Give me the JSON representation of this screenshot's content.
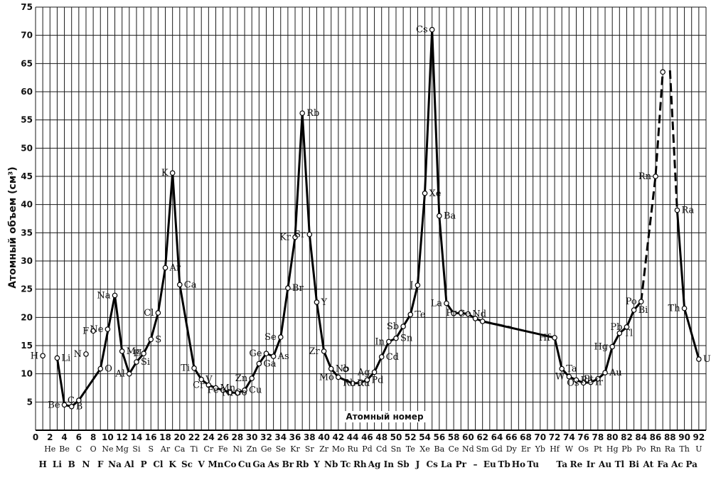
{
  "chart_data": {
    "type": "line",
    "ylabel": "Атомный объем (см³)",
    "xlabel": "Атомный номер",
    "ylim": [
      0,
      75
    ],
    "xlim": [
      0,
      93
    ],
    "y_ticks": [
      5,
      10,
      15,
      20,
      25,
      30,
      35,
      40,
      45,
      50,
      55,
      60,
      65,
      70,
      75
    ],
    "x_ticks": [
      0,
      2,
      4,
      6,
      8,
      10,
      12,
      14,
      16,
      18,
      20,
      22,
      24,
      26,
      28,
      30,
      32,
      34,
      36,
      38,
      40,
      42,
      44,
      46,
      48,
      50,
      52,
      54,
      56,
      58,
      60,
      62,
      64,
      66,
      68,
      70,
      72,
      74,
      76,
      78,
      80,
      82,
      84,
      86,
      88,
      90,
      92
    ],
    "even_symbols": [
      "He",
      "Be",
      "C",
      "O",
      "Ne",
      "Mg",
      "Si",
      "S",
      "Ar",
      "Ca",
      "Ti",
      "Cr",
      "Fe",
      "Ni",
      "Zn",
      "Ge",
      "Se",
      "Kr",
      "Sr",
      "Zr",
      "Mo",
      "Ru",
      "Pd",
      "Cd",
      "Sn",
      "Te",
      "Xe",
      "Ba",
      "Ce",
      "Nd",
      "Sm",
      "Gd",
      "Dy",
      "Er",
      "Yb",
      "Hf",
      "W",
      "Os",
      "Pt",
      "Hg",
      "Pb",
      "Po",
      "Rn",
      "Ra",
      "Th",
      "U"
    ],
    "bottom_symbols": [
      "H",
      "Li",
      "B",
      "N",
      "F",
      "Na",
      "Al",
      "P",
      "Cl",
      "K",
      "Sc",
      "V",
      "Mn",
      "Co",
      "Cu",
      "Ga",
      "As",
      "Br",
      "Rb",
      "Y",
      "Nb",
      "Tc",
      "Rh",
      "Ag",
      "In",
      "Sb",
      "J",
      "Cs",
      "La",
      "Pr",
      "–",
      "Eu",
      "Tb",
      "Ho",
      "Tu",
      "Ta",
      "Re",
      "Ir",
      "Au",
      "Tl",
      "Bi",
      "At",
      "Fa",
      "Ac",
      "Pa"
    ],
    "grid": true,
    "series": [
      {
        "style": "solid",
        "points": [
          {
            "x": 3,
            "y": 12.8,
            "label": "Li"
          },
          {
            "x": 4,
            "y": 4.5,
            "label": "Be"
          },
          {
            "x": 5,
            "y": 4.2,
            "label": "B"
          },
          {
            "x": 6,
            "y": 5.3,
            "label": "C"
          },
          {
            "x": 9,
            "y": 10.9,
            "label": "O"
          },
          {
            "x": 11,
            "y": 23.9,
            "label": "Na"
          },
          {
            "x": 12,
            "y": 14.0,
            "label": "Mg"
          },
          {
            "x": 13,
            "y": 10.0,
            "label": "Al"
          },
          {
            "x": 14,
            "y": 12.1,
            "label": "Si"
          },
          {
            "x": 15,
            "y": 13.6,
            "label": "P"
          },
          {
            "x": 16,
            "y": 16.1,
            "label": "S"
          },
          {
            "x": 17,
            "y": 20.8,
            "label": "Cl"
          },
          {
            "x": 18,
            "y": 28.8,
            "label": "Ar"
          },
          {
            "x": 19,
            "y": 45.6,
            "label": "K"
          },
          {
            "x": 20,
            "y": 25.8,
            "label": "Ca"
          },
          {
            "x": 22,
            "y": 11.0,
            "label": "Ti"
          },
          {
            "x": 23,
            "y": 9.0,
            "label": "V"
          },
          {
            "x": 24,
            "y": 8.0,
            "label": "Cr"
          },
          {
            "x": 25,
            "y": 7.5,
            "label": "Mn"
          },
          {
            "x": 26,
            "y": 7.1,
            "label": "Fe"
          },
          {
            "x": 27,
            "y": 6.7,
            "label": "Co"
          },
          {
            "x": 28,
            "y": 6.6,
            "label": "Ni"
          },
          {
            "x": 29,
            "y": 7.1,
            "label": "Cu"
          },
          {
            "x": 30,
            "y": 9.2,
            "label": "Zn"
          },
          {
            "x": 31,
            "y": 11.8,
            "label": "Ga"
          },
          {
            "x": 32,
            "y": 13.6,
            "label": "Ge"
          },
          {
            "x": 33,
            "y": 13.1,
            "label": "As"
          },
          {
            "x": 34,
            "y": 16.5,
            "label": "Se"
          },
          {
            "x": 35,
            "y": 25.2,
            "label": "Br"
          },
          {
            "x": 36,
            "y": 34.2,
            "label": "Kr"
          },
          {
            "x": 37,
            "y": 56.2,
            "label": "Rb"
          },
          {
            "x": 38,
            "y": 34.7,
            "label": "Sr"
          },
          {
            "x": 39,
            "y": 22.7,
            "label": "Y"
          },
          {
            "x": 40,
            "y": 14.0,
            "label": "Zr"
          },
          {
            "x": 41,
            "y": 10.9,
            "label": "Nb"
          },
          {
            "x": 42,
            "y": 9.4,
            "label": "Mo"
          },
          {
            "x": 44,
            "y": 8.3,
            "label": "Ru"
          },
          {
            "x": 45,
            "y": 8.4,
            "label": "Rh"
          },
          {
            "x": 46,
            "y": 8.9,
            "label": "Pd"
          },
          {
            "x": 47,
            "y": 10.3,
            "label": "Ag"
          },
          {
            "x": 48,
            "y": 13.0,
            "label": "Cd"
          },
          {
            "x": 49,
            "y": 15.7,
            "label": "In"
          },
          {
            "x": 50,
            "y": 16.3,
            "label": "Sn"
          },
          {
            "x": 51,
            "y": 18.4,
            "label": "Sb"
          },
          {
            "x": 52,
            "y": 20.5,
            "label": "Te"
          },
          {
            "x": 53,
            "y": 25.7,
            "label": "J"
          },
          {
            "x": 54,
            "y": 42.0,
            "label": "Xe"
          },
          {
            "x": 55,
            "y": 71.0,
            "label": "Cs"
          },
          {
            "x": 56,
            "y": 38.0,
            "label": "Ba"
          },
          {
            "x": 57,
            "y": 22.5,
            "label": "La"
          },
          {
            "x": 58,
            "y": 20.7,
            "label": "Ce"
          },
          {
            "x": 59,
            "y": 20.8,
            "label": "Pr"
          },
          {
            "x": 60,
            "y": 20.6,
            "label": "Nd"
          },
          {
            "x": 61,
            "y": 19.8,
            "label": ""
          },
          {
            "x": 62,
            "y": 19.3,
            "label": ""
          },
          {
            "x": 72,
            "y": 16.4,
            "label": "Hf"
          },
          {
            "x": 73,
            "y": 10.9,
            "label": "Ta"
          },
          {
            "x": 74,
            "y": 9.5,
            "label": "W"
          },
          {
            "x": 75,
            "y": 8.9,
            "label": "Re"
          },
          {
            "x": 76,
            "y": 8.4,
            "label": "Os"
          },
          {
            "x": 77,
            "y": 8.5,
            "label": "Ir"
          },
          {
            "x": 78,
            "y": 9.1,
            "label": "Pt"
          },
          {
            "x": 79,
            "y": 10.2,
            "label": "Au"
          },
          {
            "x": 80,
            "y": 14.8,
            "label": "Hg"
          },
          {
            "x": 81,
            "y": 17.2,
            "label": "Tl"
          },
          {
            "x": 82,
            "y": 18.3,
            "label": "Pb"
          },
          {
            "x": 83,
            "y": 21.3,
            "label": "Bi"
          },
          {
            "x": 84,
            "y": 22.8,
            "label": "Po"
          }
        ]
      },
      {
        "style": "dashed",
        "points": [
          {
            "x": 62,
            "y": 19.3
          },
          {
            "x": 66,
            "y": 18.2
          }
        ]
      },
      {
        "style": "dashed",
        "points": [
          {
            "x": 84,
            "y": 22.8
          },
          {
            "x": 86,
            "y": 45.0
          },
          {
            "x": 87,
            "y": 63.5
          }
        ]
      },
      {
        "style": "dashed",
        "points": [
          {
            "x": 88,
            "y": 63.8
          },
          {
            "x": 89,
            "y": 39.0
          }
        ]
      },
      {
        "style": "solid",
        "points": [
          {
            "x": 89,
            "y": 39.0,
            "label": "Ra"
          },
          {
            "x": 90,
            "y": 21.6,
            "label": "Th"
          },
          {
            "x": 92,
            "y": 12.6,
            "label": "U"
          }
        ]
      }
    ],
    "extra_points": [
      {
        "x": 1,
        "y": 13.2,
        "label": "H"
      },
      {
        "x": 7,
        "y": 13.5,
        "label": "N"
      },
      {
        "x": 8,
        "y": 17.6,
        "label": "F"
      },
      {
        "x": 10,
        "y": 17.9,
        "label": "Ne"
      },
      {
        "x": 43,
        "y": 10.8,
        "label": ""
      },
      {
        "x": 86,
        "y": 45.0,
        "label": "Rn"
      },
      {
        "x": 87,
        "y": 63.5,
        "label": ""
      }
    ]
  }
}
